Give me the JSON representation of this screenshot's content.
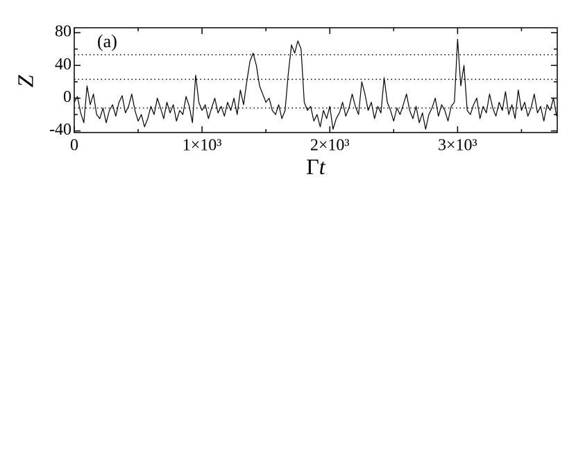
{
  "chart_data": {
    "type": "line",
    "annotation": "(a)",
    "xlabel": "Γ",
    "xlabel_italic": "t",
    "ylabel": "Z",
    "color": "#000000",
    "x": [
      0,
      25,
      50,
      75,
      100,
      125,
      150,
      175,
      200,
      225,
      250,
      275,
      300,
      325,
      350,
      375,
      400,
      425,
      450,
      475,
      500,
      525,
      550,
      575,
      600,
      625,
      650,
      675,
      700,
      725,
      750,
      775,
      800,
      825,
      850,
      875,
      900,
      925,
      950,
      975,
      1000,
      1025,
      1050,
      1075,
      1100,
      1125,
      1150,
      1175,
      1200,
      1225,
      1250,
      1275,
      1300,
      1325,
      1350,
      1375,
      1400,
      1425,
      1450,
      1475,
      1500,
      1525,
      1550,
      1575,
      1600,
      1625,
      1650,
      1675,
      1700,
      1725,
      1750,
      1775,
      1800,
      1825,
      1850,
      1875,
      1900,
      1925,
      1950,
      1975,
      2000,
      2025,
      2050,
      2075,
      2100,
      2125,
      2150,
      2175,
      2200,
      2225,
      2250,
      2275,
      2300,
      2325,
      2350,
      2375,
      2400,
      2425,
      2450,
      2475,
      2500,
      2525,
      2550,
      2575,
      2600,
      2625,
      2650,
      2675,
      2700,
      2725,
      2750,
      2775,
      2800,
      2825,
      2850,
      2875,
      2900,
      2925,
      2950,
      2975,
      3000,
      3025,
      3050,
      3075,
      3100,
      3125,
      3150,
      3175,
      3200,
      3225,
      3250,
      3275,
      3300,
      3325,
      3350,
      3375,
      3400,
      3425,
      3450,
      3475,
      3500,
      3525,
      3550,
      3575,
      3600,
      3625,
      3650,
      3675,
      3700,
      3725,
      3750,
      3775
    ],
    "values": [
      -5,
      2,
      -18,
      -30,
      15,
      -8,
      5,
      -20,
      -25,
      -12,
      -30,
      -15,
      -8,
      -22,
      -5,
      3,
      -18,
      -10,
      5,
      -15,
      -28,
      -20,
      -35,
      -25,
      -10,
      -20,
      0,
      -12,
      -25,
      -5,
      -18,
      -8,
      -28,
      -15,
      -20,
      2,
      -10,
      -30,
      28,
      -5,
      -15,
      -8,
      -25,
      -12,
      0,
      -18,
      -10,
      -22,
      -5,
      -15,
      0,
      -20,
      10,
      -8,
      20,
      45,
      55,
      40,
      15,
      5,
      -5,
      0,
      -15,
      -20,
      -8,
      -25,
      -15,
      30,
      65,
      55,
      70,
      60,
      -5,
      -15,
      -10,
      -28,
      -20,
      -35,
      -15,
      -25,
      -10,
      -38,
      -25,
      -18,
      -5,
      -22,
      -12,
      5,
      -10,
      -20,
      20,
      5,
      -15,
      -5,
      -25,
      -10,
      -18,
      25,
      -5,
      -15,
      -28,
      -12,
      -20,
      -8,
      5,
      -15,
      -25,
      -10,
      -30,
      -18,
      -38,
      -20,
      -12,
      0,
      -22,
      -8,
      -15,
      -28,
      -10,
      -5,
      72,
      15,
      40,
      -15,
      -20,
      -8,
      0,
      -25,
      -10,
      -18,
      5,
      -12,
      -22,
      -5,
      -15,
      8,
      -20,
      -8,
      -25,
      10,
      -15,
      -5,
      -22,
      -12,
      5,
      -18,
      -10,
      -28,
      -8,
      -15,
      0,
      -22
    ],
    "xlim": [
      0,
      3780
    ],
    "ylim": [
      -42,
      86
    ],
    "xticks": [
      0,
      {
        "value": 1000,
        "label": "1×10³"
      },
      {
        "value": 2000,
        "label": "2×10³"
      },
      {
        "value": 3000,
        "label": "3×10³"
      }
    ],
    "xminorticks": [
      500,
      1500,
      2500,
      3500
    ],
    "yticks": [
      -40,
      0,
      40,
      80
    ],
    "yminorticks": [
      -20,
      20,
      60
    ],
    "hlines": [
      53,
      23,
      -12
    ]
  }
}
